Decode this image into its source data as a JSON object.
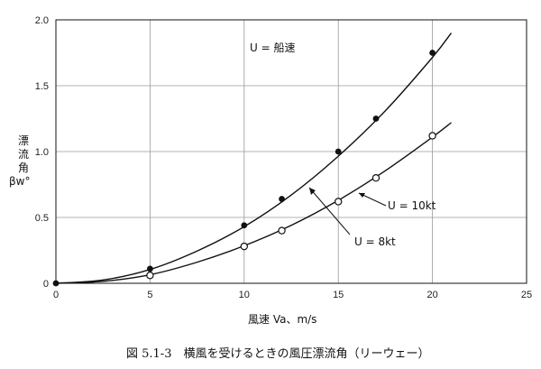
{
  "chart_data": {
    "type": "scatter",
    "xlabel": "風速 Va、m/s",
    "ylabel_lines": [
      "漂",
      "流",
      "角",
      "βw°"
    ],
    "xlim": [
      0,
      25
    ],
    "ylim": [
      0,
      2.0
    ],
    "xticks": [
      0,
      5,
      10,
      15,
      20,
      25
    ],
    "yticks": [
      0.5,
      1.0,
      1.5,
      2.0
    ],
    "ytick_labels": [
      "0.5",
      "1.0",
      "1.5",
      "2.0"
    ],
    "origin_label": "0",
    "grid": true,
    "series": [
      {
        "name": "U = 8kt",
        "marker": "filled-circle",
        "points": [
          [
            0,
            0
          ],
          [
            5,
            0.11
          ],
          [
            10,
            0.44
          ],
          [
            12,
            0.64
          ],
          [
            15,
            1.0
          ],
          [
            17,
            1.25
          ],
          [
            20,
            1.75
          ]
        ],
        "curve": [
          [
            0,
            0
          ],
          [
            2.5,
            0.025
          ],
          [
            5,
            0.105
          ],
          [
            7.5,
            0.245
          ],
          [
            10,
            0.43
          ],
          [
            12.5,
            0.67
          ],
          [
            15,
            0.965
          ],
          [
            17.5,
            1.31
          ],
          [
            20,
            1.715
          ],
          [
            21,
            1.9
          ]
        ]
      },
      {
        "name": "U = 10kt",
        "marker": "open-circle",
        "points": [
          [
            5,
            0.06
          ],
          [
            10,
            0.28
          ],
          [
            12,
            0.4
          ],
          [
            15,
            0.62
          ],
          [
            17,
            0.8
          ],
          [
            20,
            1.12
          ]
        ],
        "curve": [
          [
            0,
            0
          ],
          [
            2.5,
            0.015
          ],
          [
            5,
            0.065
          ],
          [
            7.5,
            0.16
          ],
          [
            10,
            0.285
          ],
          [
            12.5,
            0.44
          ],
          [
            15,
            0.63
          ],
          [
            17.5,
            0.855
          ],
          [
            20,
            1.11
          ],
          [
            21,
            1.22
          ]
        ]
      }
    ],
    "annotations": {
      "legend_text": "U  =  船速"
    }
  },
  "caption": "図 5.1-3　横風を受けるときの風圧漂流角（リーウェー）"
}
